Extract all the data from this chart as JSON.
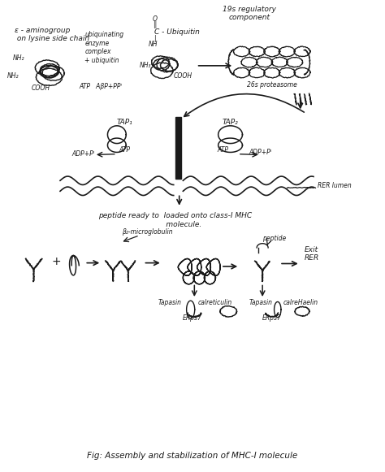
{
  "title": "Fig: Assembly and stabilization of MHC-I molecule",
  "background_color": "#ffffff",
  "ink_color": "#1a1a1a",
  "figsize": [
    4.74,
    5.81
  ],
  "dpi": 100,
  "annotations": {
    "epsilon_amino": "ε - aminogroup\n on lysine side chain",
    "regulatory": "19s regulatory\ncomponent",
    "proteasome": "26s proteasome",
    "tap1": "TAP₁",
    "tap2": "TAP₂",
    "adp1": "ADP+Pᴵ",
    "rer_lumen": "RER lumen",
    "peptide_ready": "peptide ready to  loaded onto class-I MHC\n                             molecule.",
    "beta2": "β₂-microglobulin",
    "peptide": "peptide",
    "exit_rer": "Exit\nRER",
    "tapasin1": "Tapasin",
    "calreticulin1": "calreticulin",
    "erp57_1": "ERps7",
    "tapasin2": "Tapasin",
    "calreticulin2": "calreHaelin",
    "erp57_2": "ERps7",
    "ubiq_enzyme": "ubiquinating\nenzyme\ncomplex\n+ ubiquitin",
    "atp_label": "ATP   AβP+PPᴵ"
  }
}
